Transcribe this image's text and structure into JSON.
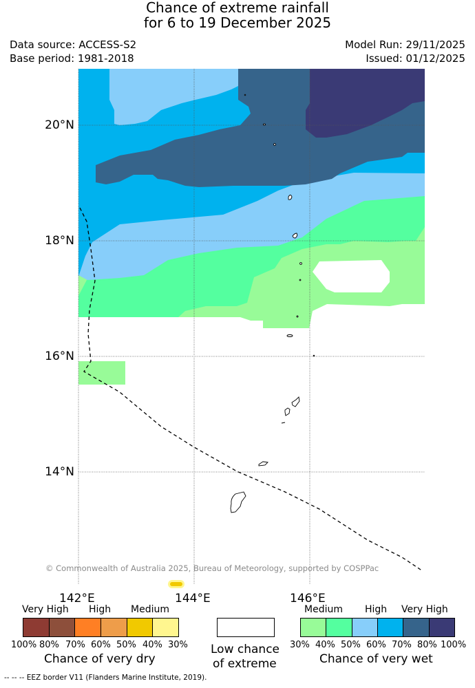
{
  "header": {
    "title_line1": "Chance of extreme rainfall",
    "title_line2": "for 6 to 19 December 2025",
    "data_source": "Data source: ACCESS-S2",
    "base_period": "Base period: 1981-2018",
    "model_run": "Model Run: 29/11/2025",
    "issued": "Issued: 01/12/2025"
  },
  "map": {
    "lat_labels": [
      "20°N",
      "18°N",
      "16°N",
      "14°N"
    ],
    "lon_labels": [
      "142°E",
      "144°E",
      "146°E"
    ],
    "copyright": "© Commonwealth of Australia 2025, Bureau of Meteorology, supported by COSPPac"
  },
  "legend": {
    "dry": {
      "labels": [
        "Very High",
        "High",
        "Medium"
      ],
      "percents": [
        "100%",
        "80%",
        "70%",
        "60%",
        "50%",
        "40%",
        "30%"
      ],
      "colors": [
        "#8e3b33",
        "#8d4f3b",
        "#ff7f24",
        "#ee9d4a",
        "#f1c900",
        "#fff68f"
      ],
      "caption": "Chance of very dry"
    },
    "low": {
      "line1": "Low chance",
      "line2": "of extreme",
      "color": "#ffffff"
    },
    "wet": {
      "labels": [
        "Medium",
        "High",
        "Very High"
      ],
      "percents": [
        "30%",
        "40%",
        "50%",
        "60%",
        "70%",
        "80%",
        "100%"
      ],
      "colors": [
        "#98fb98",
        "#54ff9f",
        "#87cefa",
        "#00b2ee",
        "#36648b",
        "#3a3a75"
      ],
      "caption": "Chance of very wet"
    },
    "footnote": "--  --  -- EEZ border V11 (Flanders Marine Institute, 2019)."
  }
}
